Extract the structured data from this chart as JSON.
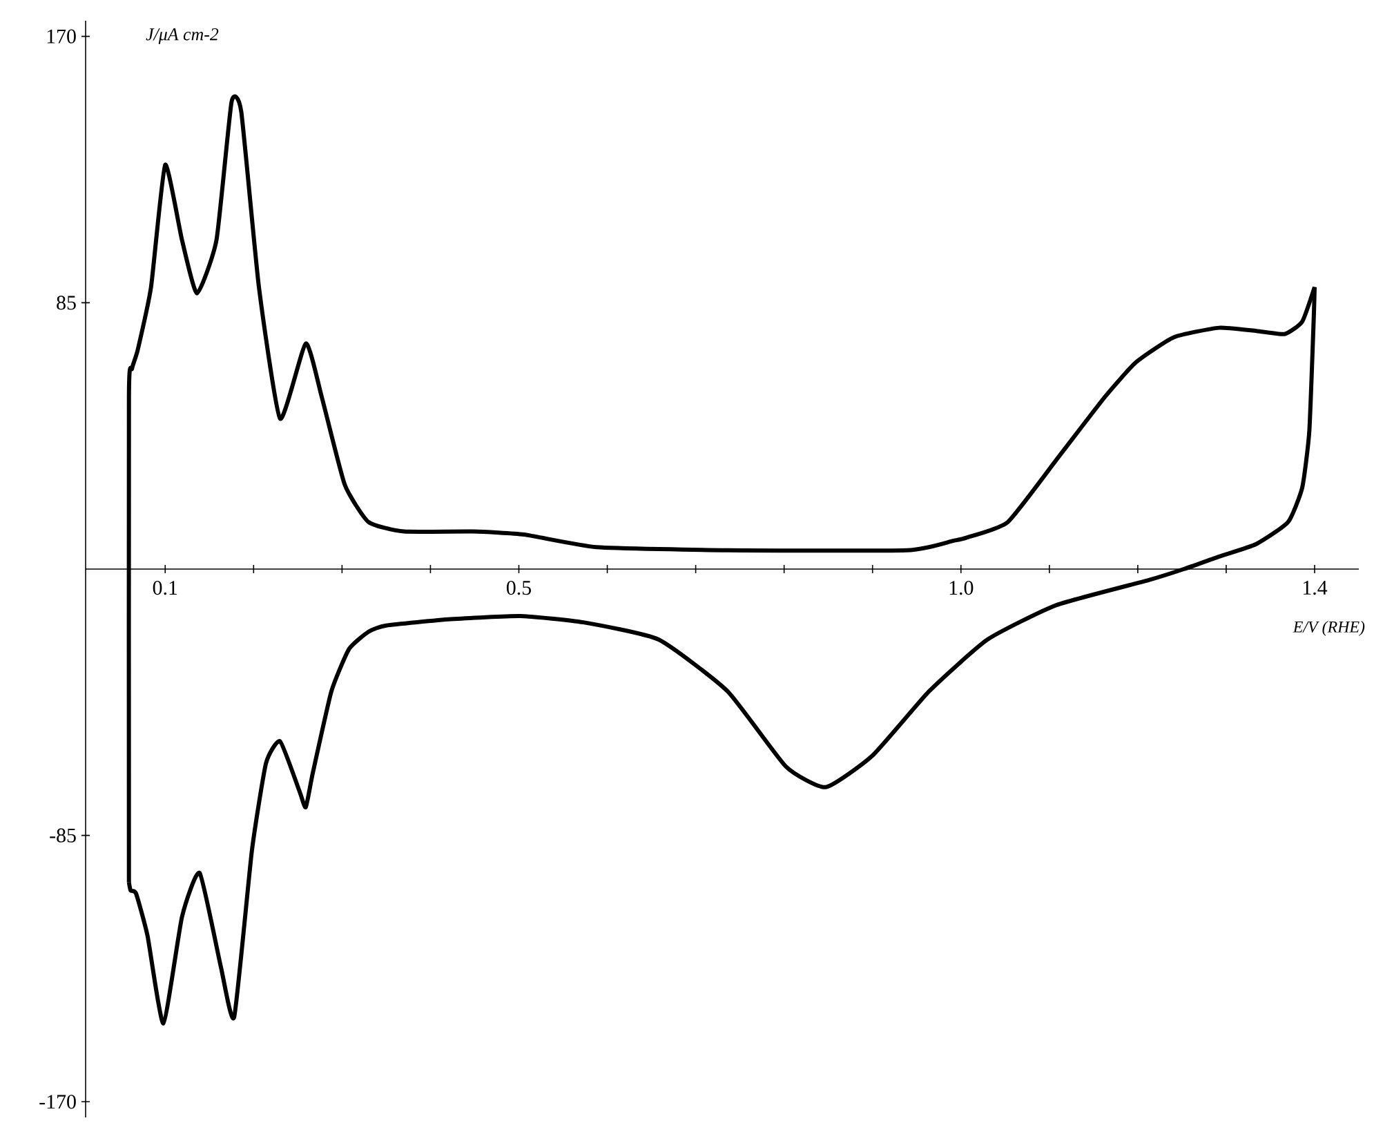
{
  "chart_data": {
    "type": "line",
    "xlabel": "E/V (RHE)",
    "ylabel": "J/μA cm-2",
    "xlim": [
      0.01,
      1.45
    ],
    "ylim": [
      -175,
      175
    ],
    "xticks": [
      0.1,
      {
        "value": 0.2,
        "label": null
      },
      {
        "value": 0.3,
        "label": null
      },
      {
        "value": 0.4,
        "label": null
      },
      0.5,
      {
        "value": 0.6,
        "label": null
      },
      {
        "value": 0.7,
        "label": null
      },
      {
        "value": 0.8,
        "label": null
      },
      {
        "value": 0.9,
        "label": null
      },
      {
        "value": 1.0,
        "label": "1.0"
      },
      {
        "value": 1.1,
        "label": null
      },
      {
        "value": 1.2,
        "label": null
      },
      {
        "value": 1.3,
        "label": null
      },
      1.4
    ],
    "yticks": [
      -170,
      -85,
      85,
      170
    ],
    "grid": false,
    "marker": "none",
    "line_style": "solid",
    "series": [
      {
        "color": "#000000",
        "x": [
          0.059,
          0.059,
          0.0625,
          0.069,
          0.084,
          0.1,
          0.119,
          0.136,
          0.158,
          0.175,
          0.186,
          0.206,
          0.23,
          0.259,
          0.277,
          0.303,
          0.33,
          0.37,
          0.448,
          0.506,
          0.588,
          0.736,
          0.939,
          0.991,
          1.006,
          1.053,
          1.111,
          1.163,
          1.198,
          1.241,
          1.292,
          1.334,
          1.366,
          1.386,
          1.4
        ],
        "values": [
          -100,
          55,
          64,
          70,
          90,
          129,
          105,
          88,
          105,
          149,
          146,
          90,
          48,
          72,
          55,
          27,
          15,
          12,
          12,
          11,
          7,
          6,
          6,
          9,
          10,
          15,
          36,
          55,
          66,
          74,
          77,
          76,
          75,
          79,
          90
        ]
      },
      {
        "color": "#000000",
        "x": [
          1.4,
          1.399,
          1.394,
          1.386,
          1.37,
          1.334,
          1.292,
          1.252,
          1.2125,
          1.108,
          1.03,
          0.964,
          0.9,
          0.847,
          0.802,
          0.736,
          0.658,
          0.573,
          0.502,
          0.423,
          0.35,
          0.33,
          0.308,
          0.288,
          0.267,
          0.259,
          0.252,
          0.23,
          0.214,
          0.198,
          0.178,
          0.163,
          0.139,
          0.119,
          0.098,
          0.08,
          0.067,
          0.061,
          0.059
        ],
        "values": [
          90,
          80,
          44,
          26,
          15,
          8,
          4,
          0,
          -3.5,
          -11.5,
          -22.5,
          -39,
          -59.5,
          -69.6,
          -63,
          -39,
          -22.5,
          -17,
          -15,
          -16,
          -18,
          -20,
          -25.5,
          -39,
          -65,
          -76,
          -71,
          -55,
          -62,
          -90,
          -143,
          -127,
          -97,
          -111,
          -145,
          -117,
          -103.5,
          -102.6,
          -100
        ]
      }
    ]
  }
}
